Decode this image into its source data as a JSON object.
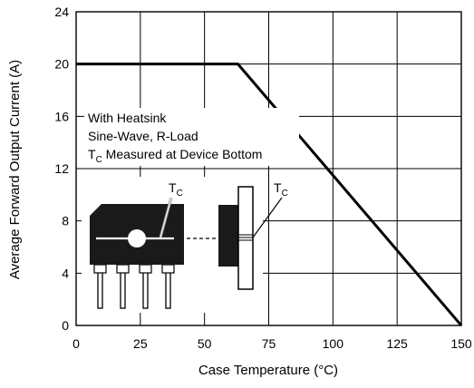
{
  "chart_data": {
    "type": "line",
    "xlabel": "Case Temperature (°C)",
    "ylabel": "Average Forward Output Current (A)",
    "xlim": [
      0,
      150
    ],
    "ylim": [
      0,
      24
    ],
    "x_ticks": [
      0,
      25,
      50,
      75,
      100,
      125,
      150
    ],
    "y_ticks": [
      0,
      4,
      8,
      12,
      16,
      20,
      24
    ],
    "grid": true,
    "series": [
      {
        "x": [
          0,
          63,
          150
        ],
        "y": [
          20,
          20,
          0
        ],
        "color": "#000000"
      }
    ],
    "annotations": {
      "line1": "With Heatsink",
      "line2": "Sine-Wave, R-Load",
      "line3_main": "T",
      "line3_sub": "C",
      "line3_rest": " Measured at Device Bottom",
      "tc_main": "T",
      "tc_sub": "C"
    }
  }
}
